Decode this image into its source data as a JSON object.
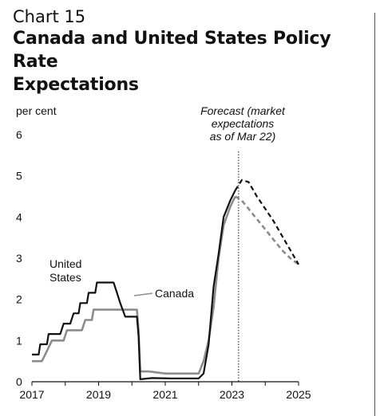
{
  "header": {
    "chart_number": "Chart 15",
    "title_line1": "Canada and United States Policy Rate",
    "title_line2": "Expectations"
  },
  "colors": {
    "us": "#111111",
    "canada": "#8c8c8c",
    "axis": "#111111"
  },
  "chart_data": {
    "type": "line",
    "title": "Canada and United States Policy Rate Expectations",
    "ylabel": "per cent",
    "xlim": [
      2017,
      2025
    ],
    "ylim": [
      0,
      6
    ],
    "x_ticks": [
      2017,
      2019,
      2021,
      2023,
      2025
    ],
    "y_ticks": [
      0,
      1,
      2,
      3,
      4,
      5,
      6
    ],
    "grid": false,
    "annotation": {
      "lines": [
        "Forecast (market",
        "expectations",
        "as of Mar 22)"
      ],
      "x": 2023.2
    },
    "series": [
      {
        "name": "United States",
        "label_lines": [
          "United",
          "States"
        ],
        "style": "black",
        "values": [
          [
            2017.0,
            0.66
          ],
          [
            2017.2,
            0.66
          ],
          [
            2017.25,
            0.91
          ],
          [
            2017.45,
            0.91
          ],
          [
            2017.5,
            1.16
          ],
          [
            2017.85,
            1.16
          ],
          [
            2017.95,
            1.41
          ],
          [
            2018.15,
            1.41
          ],
          [
            2018.25,
            1.66
          ],
          [
            2018.4,
            1.66
          ],
          [
            2018.45,
            1.91
          ],
          [
            2018.65,
            1.91
          ],
          [
            2018.7,
            2.16
          ],
          [
            2018.9,
            2.16
          ],
          [
            2018.95,
            2.41
          ],
          [
            2019.45,
            2.41
          ],
          [
            2019.55,
            2.16
          ],
          [
            2019.65,
            1.91
          ],
          [
            2019.8,
            1.58
          ],
          [
            2020.15,
            1.58
          ],
          [
            2020.2,
            1.1
          ],
          [
            2020.25,
            0.06
          ],
          [
            2020.6,
            0.09
          ],
          [
            2021.2,
            0.08
          ],
          [
            2021.8,
            0.08
          ],
          [
            2022.0,
            0.08
          ],
          [
            2022.15,
            0.2
          ],
          [
            2022.3,
            0.9
          ],
          [
            2022.45,
            2.3
          ],
          [
            2022.6,
            3.1
          ],
          [
            2022.75,
            4.0
          ],
          [
            2022.95,
            4.4
          ],
          [
            2023.1,
            4.65
          ]
        ]
      },
      {
        "name": "Canada",
        "label_lines": [
          "Canada"
        ],
        "style": "grey",
        "values": [
          [
            2017.0,
            0.5
          ],
          [
            2017.3,
            0.5
          ],
          [
            2017.45,
            0.75
          ],
          [
            2017.6,
            1.0
          ],
          [
            2017.95,
            1.0
          ],
          [
            2018.05,
            1.25
          ],
          [
            2018.5,
            1.25
          ],
          [
            2018.6,
            1.5
          ],
          [
            2018.8,
            1.5
          ],
          [
            2018.85,
            1.75
          ],
          [
            2020.15,
            1.75
          ],
          [
            2020.2,
            1.25
          ],
          [
            2020.25,
            0.25
          ],
          [
            2020.5,
            0.25
          ],
          [
            2021.0,
            0.2
          ],
          [
            2021.5,
            0.2
          ],
          [
            2022.0,
            0.2
          ],
          [
            2022.15,
            0.5
          ],
          [
            2022.3,
            1.0
          ],
          [
            2022.45,
            1.8
          ],
          [
            2022.6,
            3.0
          ],
          [
            2022.75,
            3.8
          ],
          [
            2022.95,
            4.25
          ],
          [
            2023.1,
            4.5
          ]
        ]
      },
      {
        "name": "United States forecast",
        "style": "black-dashed",
        "values": [
          [
            2023.1,
            4.65
          ],
          [
            2023.3,
            4.9
          ],
          [
            2023.5,
            4.85
          ],
          [
            2023.75,
            4.5
          ],
          [
            2024.0,
            4.2
          ],
          [
            2024.25,
            3.9
          ],
          [
            2024.5,
            3.55
          ],
          [
            2024.75,
            3.2
          ],
          [
            2025.0,
            2.85
          ]
        ]
      },
      {
        "name": "Canada forecast",
        "style": "grey-dashed",
        "values": [
          [
            2023.1,
            4.5
          ],
          [
            2023.3,
            4.4
          ],
          [
            2023.5,
            4.2
          ],
          [
            2023.75,
            3.95
          ],
          [
            2024.0,
            3.7
          ],
          [
            2024.25,
            3.45
          ],
          [
            2024.5,
            3.2
          ],
          [
            2024.75,
            3.0
          ],
          [
            2025.0,
            2.85
          ]
        ]
      }
    ]
  }
}
